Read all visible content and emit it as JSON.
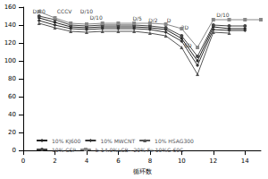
{
  "chart_data": {
    "type": "line",
    "x_label": "循环数",
    "xlim": [
      0,
      15
    ],
    "xticks": [
      0,
      2,
      4,
      6,
      8,
      10,
      12,
      14
    ],
    "ylim": [
      0,
      160
    ],
    "yticks": [
      0,
      20,
      40,
      60,
      80,
      100,
      120,
      140,
      160
    ],
    "grid": false,
    "legend": "bottom",
    "series": [
      {
        "name": "10% KJ600",
        "color": "#222222",
        "marker": "diamond",
        "x": [
          1,
          2,
          3,
          4,
          5,
          6,
          7,
          8,
          9,
          10,
          11,
          12,
          13,
          14
        ],
        "values": [
          148,
          143,
          138,
          137,
          138,
          138,
          138,
          137,
          135,
          125,
          100,
          138,
          136,
          136
        ]
      },
      {
        "name": "10% MWCNT",
        "color": "#333333",
        "marker": "diamond",
        "x": [
          1,
          2,
          3,
          4,
          5,
          6,
          7,
          8,
          9,
          10,
          11,
          12,
          13,
          14
        ],
        "values": [
          145,
          140,
          136,
          135,
          136,
          136,
          136,
          135,
          132,
          122,
          95,
          135,
          134,
          134
        ]
      },
      {
        "name": "10% HSAG300",
        "color": "#555555",
        "marker": "triangle",
        "x": [
          1,
          2,
          3,
          4,
          5,
          6,
          7,
          8,
          9,
          10,
          11,
          12,
          13
        ],
        "values": [
          142,
          137,
          133,
          132,
          133,
          133,
          133,
          131,
          128,
          115,
          85,
          132,
          131
        ]
      },
      {
        "name": "10% CSP",
        "color": "#444444",
        "marker": "circle",
        "x": [
          1,
          2,
          3,
          4,
          5,
          6,
          7,
          8,
          9,
          10,
          11,
          12,
          13,
          14
        ],
        "values": [
          150,
          146,
          140,
          139,
          140,
          140,
          140,
          139,
          137,
          128,
          105,
          140,
          139,
          139
        ]
      },
      {
        "name": "b-14.0%LCB - 20% Fe-10%C-60C",
        "color": "#888888",
        "marker": "rect",
        "x": [
          1,
          2,
          3,
          4,
          5,
          6,
          7,
          8,
          9,
          10,
          11,
          12,
          13,
          14,
          15
        ],
        "values": [
          155,
          148,
          142,
          141,
          142,
          142,
          142,
          142,
          141,
          136,
          115,
          146,
          146,
          146,
          146
        ]
      }
    ],
    "annotations": [
      {
        "text": "D/20",
        "x": 1,
        "y": 156
      },
      {
        "text": "CCCV",
        "x": 2.6,
        "y": 156
      },
      {
        "text": "D/10",
        "x": 4,
        "y": 156
      },
      {
        "text": "D/10",
        "x": 4.6,
        "y": 149
      },
      {
        "text": "D/5",
        "x": 7.2,
        "y": 148
      },
      {
        "text": "D/2",
        "x": 8.2,
        "y": 146
      },
      {
        "text": "D",
        "x": 9.2,
        "y": 146
      },
      {
        "text": "2D",
        "x": 10.2,
        "y": 138
      },
      {
        "text": "5D",
        "x": 10.4,
        "y": 118
      },
      {
        "text": "D/10",
        "x": 12.6,
        "y": 152
      }
    ]
  }
}
